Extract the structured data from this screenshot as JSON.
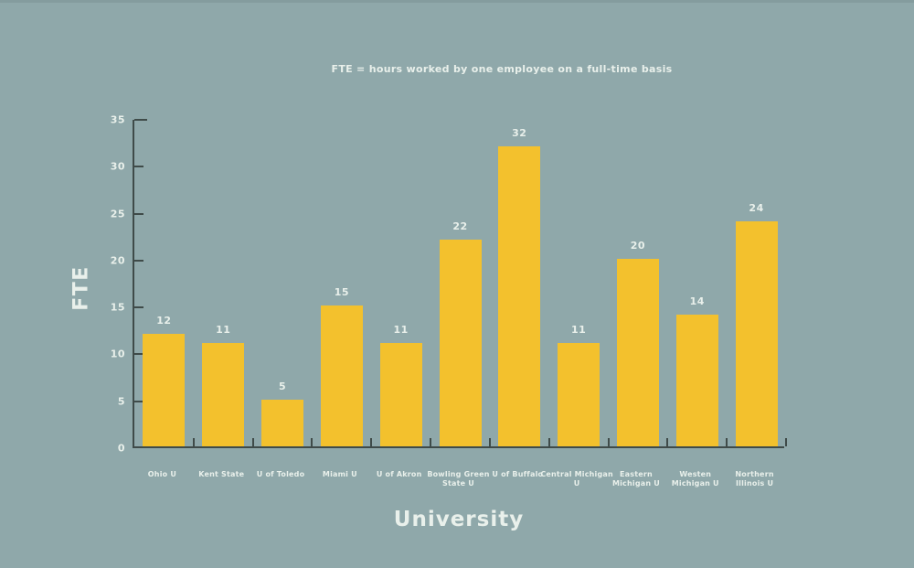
{
  "colors": {
    "background": "#8FA8AA",
    "bar": "#F3C12D",
    "text": "#E9F0EB",
    "axis": "#3F4B49"
  },
  "chart_data": {
    "type": "bar",
    "subtitle": "FTE = hours worked by one employee on a full-time basis",
    "xlabel": "University",
    "ylabel": "FTE",
    "categories": [
      "Ohio U",
      "Kent State",
      "U of Toledo",
      "Miami U",
      "U of Akron",
      "Bowling Green State U",
      "U of Buffalo",
      "Central Michigan U",
      "Eastern Michigan U",
      "Westen Michigan U",
      "Northern Illinois U"
    ],
    "category_lines": [
      [
        "Ohio U"
      ],
      [
        "Kent State"
      ],
      [
        "U of Toledo"
      ],
      [
        "Miami U"
      ],
      [
        "U of Akron"
      ],
      [
        "Bowling Green",
        "State U"
      ],
      [
        "U of Buffalo"
      ],
      [
        "Central Michigan U"
      ],
      [
        "Eastern",
        "Michigan U"
      ],
      [
        "Westen",
        "Michigan U"
      ],
      [
        "Northern",
        "Illinois U"
      ]
    ],
    "values": [
      12,
      11,
      5,
      15,
      11,
      22,
      32,
      11,
      20,
      14,
      24
    ],
    "yticks": [
      0,
      5,
      10,
      15,
      20,
      25,
      30,
      35
    ],
    "ylim": [
      0,
      35
    ],
    "grid": false,
    "legend": false,
    "value_labels": true
  }
}
